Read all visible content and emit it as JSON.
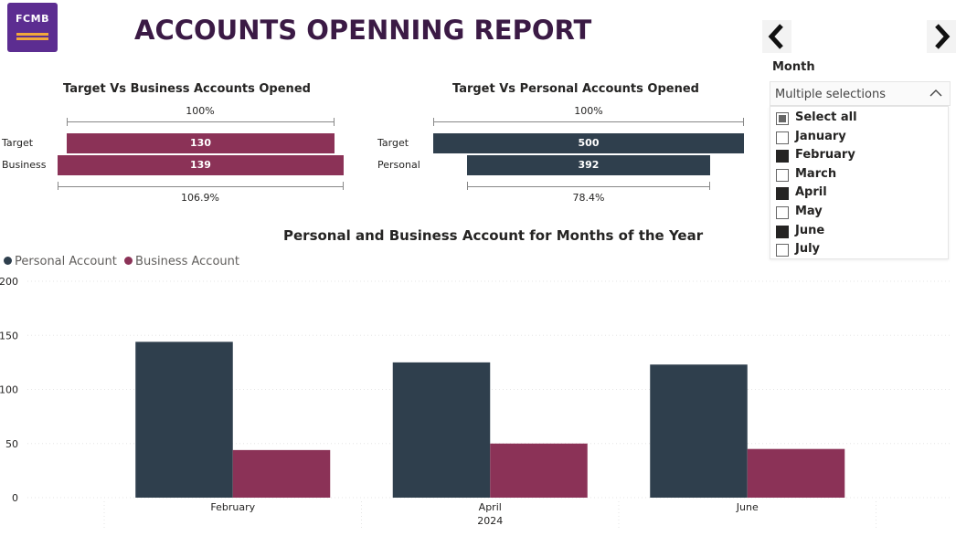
{
  "logo": {
    "text": "FCMB"
  },
  "title": "ACCOUNTS OPENNING REPORT",
  "colors": {
    "business": "#8b3257",
    "personal": "#2f3f4d",
    "title": "#3b1a45",
    "logo_bg": "#5c2d91"
  },
  "funnel_business": {
    "title": "Target Vs Business Accounts Opened",
    "top_pct": "100%",
    "bottom_pct": "106.9%",
    "rows": [
      {
        "label": "Target",
        "value": 130,
        "value_text": "130"
      },
      {
        "label": "Business",
        "value": 139,
        "value_text": "139"
      }
    ]
  },
  "funnel_personal": {
    "title": "Target Vs Personal Accounts Opened",
    "top_pct": "100%",
    "bottom_pct": "78.4%",
    "rows": [
      {
        "label": "Target",
        "value": 500,
        "value_text": "500"
      },
      {
        "label": "Personal",
        "value": 392,
        "value_text": "392"
      }
    ]
  },
  "slicer": {
    "label": "Month",
    "dropdown_value": "Multiple selections",
    "items": [
      {
        "label": "Select all",
        "state": "partial"
      },
      {
        "label": "January",
        "state": "off"
      },
      {
        "label": "February",
        "state": "on"
      },
      {
        "label": "March",
        "state": "off"
      },
      {
        "label": "April",
        "state": "on"
      },
      {
        "label": "May",
        "state": "off"
      },
      {
        "label": "June",
        "state": "on"
      },
      {
        "label": "July",
        "state": "off"
      }
    ]
  },
  "chart_data": {
    "type": "bar",
    "title": "Personal and Business Account for Months of the Year",
    "categories": [
      "February",
      "April",
      "June"
    ],
    "x_group_label": "2024",
    "series": [
      {
        "name": "Personal Account",
        "values": [
          144,
          125,
          123
        ],
        "color": "#2f3f4d"
      },
      {
        "name": "Business Account",
        "values": [
          44,
          50,
          45
        ],
        "color": "#8b3257"
      }
    ],
    "ylim": [
      0,
      200
    ],
    "yticks": [
      0,
      50,
      100,
      150,
      200
    ],
    "grid": true,
    "legend": "top-left"
  }
}
